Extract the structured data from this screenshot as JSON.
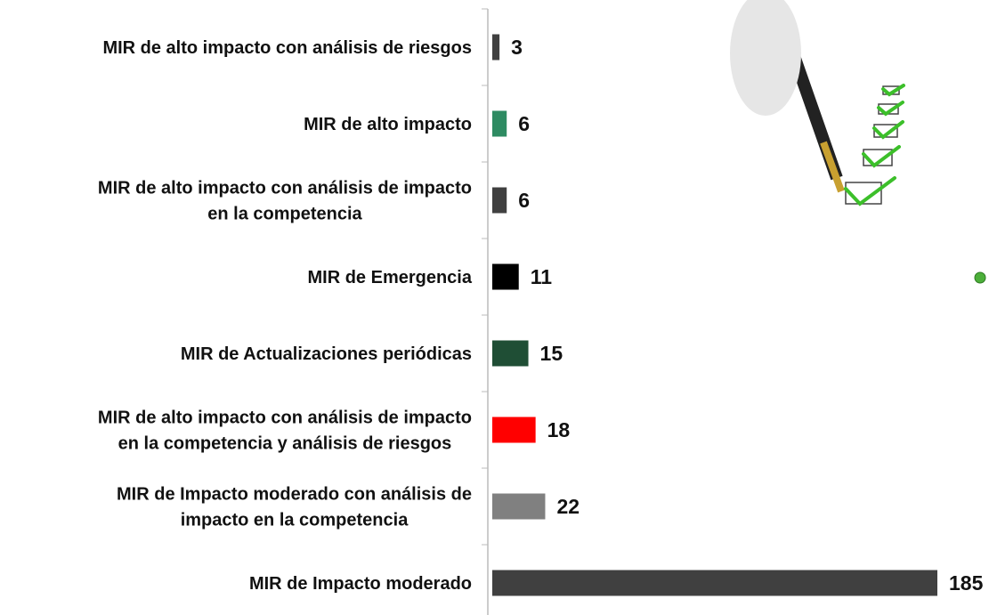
{
  "chart_data": {
    "type": "hbar",
    "categories": [
      "MIR de alto impacto con análisis de riesgos",
      "MIR de alto impacto",
      "MIR de alto impacto con análisis de impacto\nen la competencia",
      "MIR de Emergencia",
      "MIR de Actualizaciones periódicas",
      "MIR de alto impacto con análisis de impacto\nen la competencia y análisis de riesgos",
      "MIR de Impacto moderado con análisis de\nimpacto en la competencia",
      "MIR de Impacto moderado"
    ],
    "values": [
      3,
      6,
      6,
      11,
      15,
      18,
      22,
      185
    ],
    "colors": [
      "#404040",
      "#2e8b62",
      "#404040",
      "#000000",
      "#1f4e35",
      "#ff0000",
      "#808080",
      "#404040"
    ]
  }
}
